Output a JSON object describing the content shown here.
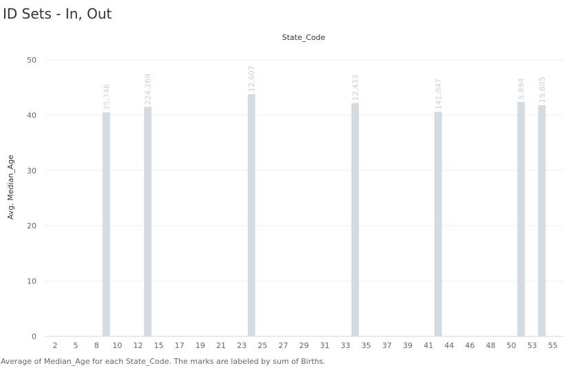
{
  "page": {
    "title": "ID Sets - In, Out",
    "caption": "Average of Median_Age for each State_Code.  The marks are labeled by sum of Births."
  },
  "chart_data": {
    "type": "bar",
    "title": "ID Sets - In, Out",
    "xlabel": "State_Code",
    "ylabel": "Avg. Median_Age",
    "ylim": [
      0,
      50
    ],
    "yticks": [
      0,
      10,
      20,
      30,
      40,
      50
    ],
    "xticks": [
      "2",
      "5",
      "8",
      "10",
      "12",
      "15",
      "17",
      "19",
      "21",
      "23",
      "25",
      "27",
      "29",
      "31",
      "33",
      "35",
      "37",
      "39",
      "41",
      "44",
      "46",
      "48",
      "50",
      "53",
      "55"
    ],
    "bars": [
      {
        "category": "8",
        "value": 40.5,
        "label": "35,746"
      },
      {
        "category": "12",
        "value": 41.5,
        "label": "224,269"
      },
      {
        "category": "23",
        "value": 43.8,
        "label": "12,607"
      },
      {
        "category": "33",
        "value": 42.2,
        "label": "12,433"
      },
      {
        "category": "41",
        "value": 40.6,
        "label": "141,047"
      },
      {
        "category": "50",
        "value": 42.4,
        "label": "5,894"
      },
      {
        "category": "53",
        "value": 41.8,
        "label": "19,805"
      }
    ],
    "bar_color": "#d3dce3",
    "grid": true,
    "legend": "none"
  }
}
